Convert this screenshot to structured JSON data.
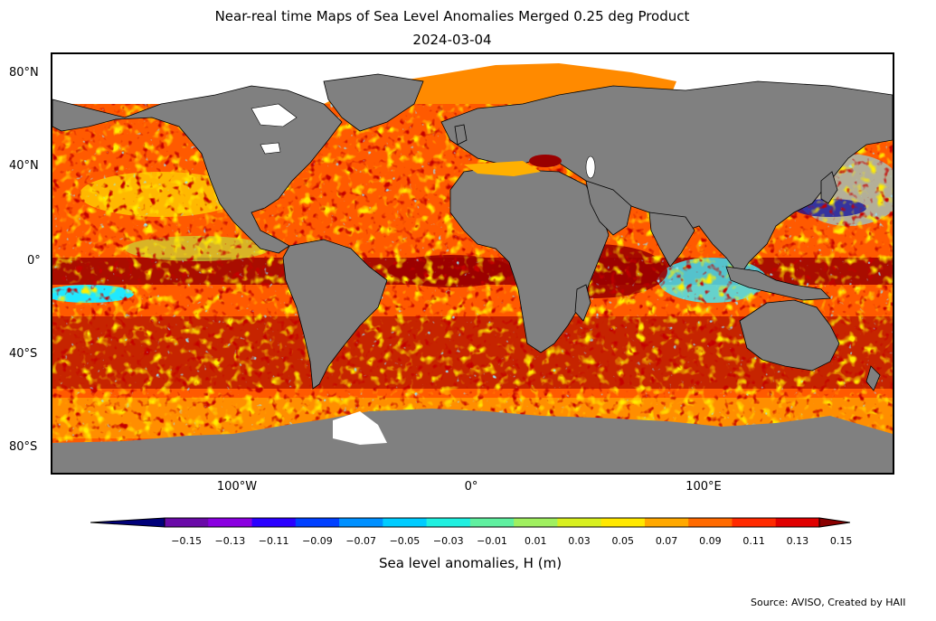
{
  "title": "Near-real time Maps of Sea Level Anomalies Merged 0.25 deg Product",
  "date": "2024-03-04",
  "lat_labels": [
    "80°N",
    "40°N",
    "0°",
    "40°S",
    "80°S"
  ],
  "lon_labels": [
    "100°W",
    "0°",
    "100°E"
  ],
  "colorbar": {
    "label": "Sea level anomalies, H (m)",
    "ticks": [
      "−0.15",
      "−0.13",
      "−0.11",
      "−0.09",
      "−0.07",
      "−0.05",
      "−0.03",
      "−0.01",
      "0.01",
      "0.03",
      "0.05",
      "0.07",
      "0.09",
      "0.11",
      "0.13",
      "0.15"
    ],
    "colors": [
      "#00007a",
      "#6a0aa8",
      "#8a00e0",
      "#2a00ff",
      "#0040ff",
      "#0090ff",
      "#00ccff",
      "#20f0e0",
      "#60f0a0",
      "#a0f060",
      "#d8f020",
      "#ffe800",
      "#ffa800",
      "#ff6a00",
      "#ff2a00",
      "#e00000",
      "#8a0000"
    ]
  },
  "colors": {
    "land": "#808080",
    "ice": "#ffffff",
    "ocean_base": "#ff5a00"
  },
  "source": "Source: AVISO, Created by HAII"
}
